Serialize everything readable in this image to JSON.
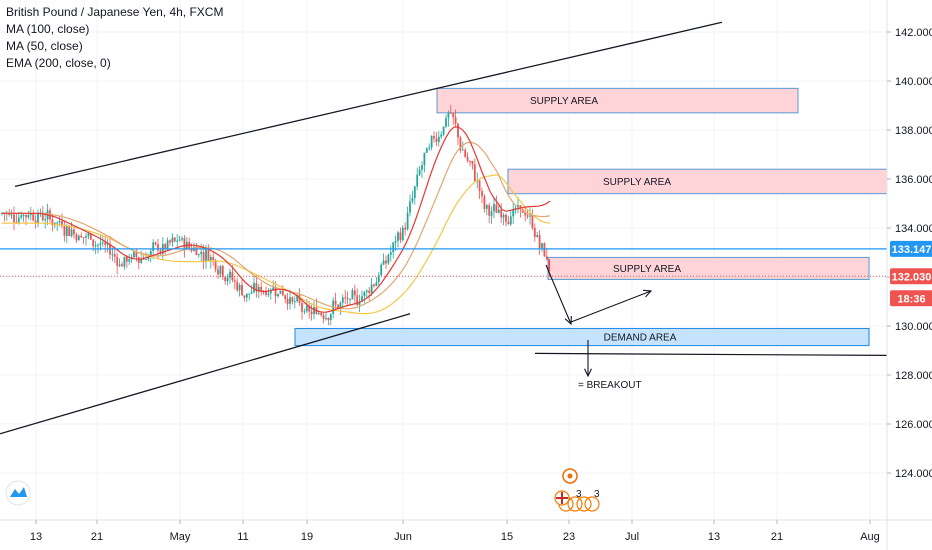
{
  "legend": {
    "title": "British Pound / Japanese Yen, 4h, FXCM",
    "ma100": "MA (100, close)",
    "ma50": "MA (50, close)",
    "ema200": "EMA (200, close, 0)"
  },
  "price_badges": {
    "level_line": "133.147",
    "last_price": "132.030",
    "countdown": "18:36"
  },
  "annotations": {
    "supply_1": "SUPPLY AREA",
    "supply_2": "SUPPLY AREA",
    "supply_3": "SUPPLY AREA",
    "demand": "DEMAND AREA",
    "breakout": "= BREAKOUT",
    "event_count": "3"
  },
  "colors": {
    "up_candle": "#26a69a",
    "down_candle": "#ef5350",
    "ma100": "#f6c646",
    "ma50": "#e1a76f",
    "ema200": "#e53935",
    "level_line": "#2196f3",
    "last_price": "#ef5350",
    "supply_fill": "#ffcdd2",
    "demand_fill": "#bbdefb"
  },
  "icons": [
    "tradingview-logo-icon",
    "event-flag-icon",
    "uk-flag-icon"
  ],
  "chart_data": {
    "type": "candlestick",
    "title": "British Pound / Japanese Yen, 4h, FXCM",
    "y_range": [
      122,
      143
    ],
    "y_ticks": [
      "142.000",
      "140.000",
      "138.000",
      "136.000",
      "134.000",
      "132.000",
      "130.000",
      "128.000",
      "126.000",
      "124.000"
    ],
    "x_ticks": [
      "13",
      "21",
      "May",
      "11",
      "19",
      "Jun",
      "15",
      "23",
      "Jul",
      "13",
      "21",
      "Aug"
    ],
    "price_path": [
      [
        "13",
        134.6
      ],
      [
        "17",
        134.0
      ],
      [
        "21",
        133.4
      ],
      [
        "24",
        132.6
      ],
      [
        "28",
        133.0
      ],
      [
        "May",
        133.4
      ],
      [
        "May 5",
        132.9
      ],
      [
        "11",
        131.3
      ],
      [
        "15",
        131.6
      ],
      [
        "19",
        130.4
      ],
      [
        "22",
        130.8
      ],
      [
        "26",
        131.0
      ],
      [
        "29",
        132.2
      ],
      [
        "Jun",
        134.0
      ],
      [
        "Jun 3",
        136.6
      ],
      [
        "Jun 6",
        138.8
      ],
      [
        "Jun 9",
        137.2
      ],
      [
        "Jun 12",
        135.5
      ],
      [
        "15",
        134.8
      ],
      [
        "Jun 18",
        134.6
      ],
      [
        "Jun 20",
        132.2
      ]
    ],
    "ma_last": {
      "ma100": 134.2,
      "ma50": 134.5,
      "ema200": 135.1
    },
    "zones": [
      {
        "label": "SUPPLY AREA",
        "low": 138.7,
        "high": 139.7,
        "from": "Jun 6",
        "to": "21"
      },
      {
        "label": "SUPPLY AREA",
        "low": 135.4,
        "high": 136.4,
        "from": "15",
        "to": "Aug"
      },
      {
        "label": "SUPPLY AREA",
        "low": 131.9,
        "high": 132.8,
        "from": "Jun 19",
        "to": "Aug"
      },
      {
        "label": "DEMAND AREA",
        "low": 129.2,
        "high": 129.9,
        "from": "19",
        "to": "Aug"
      }
    ],
    "horizontal_levels": [
      133.147,
      132.03,
      128.8
    ],
    "channel": {
      "upper": [
        [
          "13",
          135.7
        ],
        [
          "15",
          142.4
        ]
      ],
      "lower": [
        [
          "13",
          125.6
        ],
        [
          "May 5",
          130.5
        ]
      ]
    },
    "annotation": "= BREAKOUT"
  }
}
